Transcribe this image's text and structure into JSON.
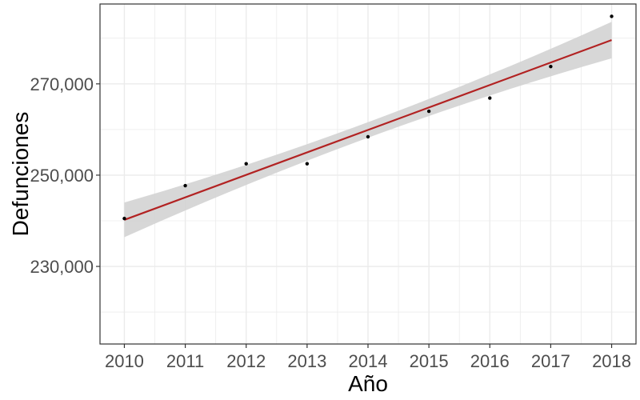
{
  "chart_data": {
    "type": "scatter",
    "title": "",
    "xlabel": "Año",
    "ylabel": "Defunciones",
    "x": [
      2010,
      2011,
      2012,
      2013,
      2014,
      2015,
      2016,
      2017,
      2018
    ],
    "series": [
      {
        "values": [
          240500,
          247700,
          252500,
          252500,
          258400,
          264000,
          266900,
          273800,
          284800
        ]
      }
    ],
    "trend": {
      "type": "linear",
      "start": [
        2010,
        240200
      ],
      "end": [
        2018,
        279600
      ],
      "ci_start": [
        236400,
        244000
      ],
      "ci_mid": [
        258200,
        261600
      ],
      "ci_end": [
        275600,
        283600
      ]
    },
    "xticks": [
      "2010",
      "2011",
      "2012",
      "2013",
      "2014",
      "2015",
      "2016",
      "2017",
      "2018"
    ],
    "yticks": [
      "230,000",
      "250,000",
      "270,000"
    ],
    "xlim": [
      2009.6,
      2018.4
    ],
    "ylim": [
      213000,
      287500
    ],
    "grid": true,
    "legend": "none",
    "colors": {
      "points": "#000000",
      "trend_line": "#b22222",
      "ci_band": "#d3d3d3",
      "grid": "#ebebeb",
      "panel_border": "#333333"
    }
  }
}
